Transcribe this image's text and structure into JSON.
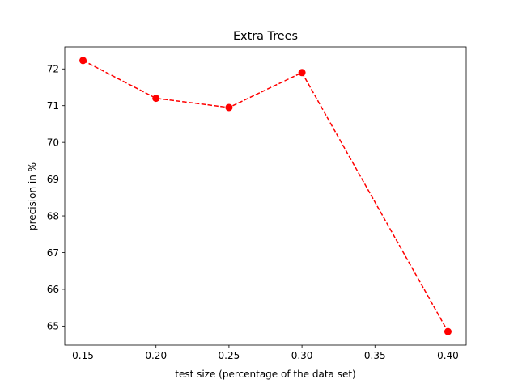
{
  "chart_data": {
    "type": "line",
    "title": "Extra Trees",
    "xlabel": "test size (percentage of the data set)",
    "ylabel": "precision in %",
    "x": [
      0.15,
      0.2,
      0.25,
      0.3,
      0.4
    ],
    "series": [
      {
        "values": [
          72.23,
          71.2,
          70.95,
          71.9,
          64.85
        ],
        "color": "#ff0000",
        "line_style": "dashed",
        "marker": "circle"
      }
    ],
    "xticks": [
      0.15,
      0.2,
      0.25,
      0.3,
      0.35,
      0.4
    ],
    "xtick_labels": [
      "0.15",
      "0.20",
      "0.25",
      "0.30",
      "0.35",
      "0.40"
    ],
    "yticks": [
      65,
      66,
      67,
      68,
      69,
      70,
      71,
      72
    ],
    "ytick_labels": [
      "65",
      "66",
      "67",
      "68",
      "69",
      "70",
      "71",
      "72"
    ],
    "xlim": [
      0.1375,
      0.4125
    ],
    "ylim": [
      64.48,
      72.6
    ],
    "grid": false,
    "legend": "none"
  }
}
